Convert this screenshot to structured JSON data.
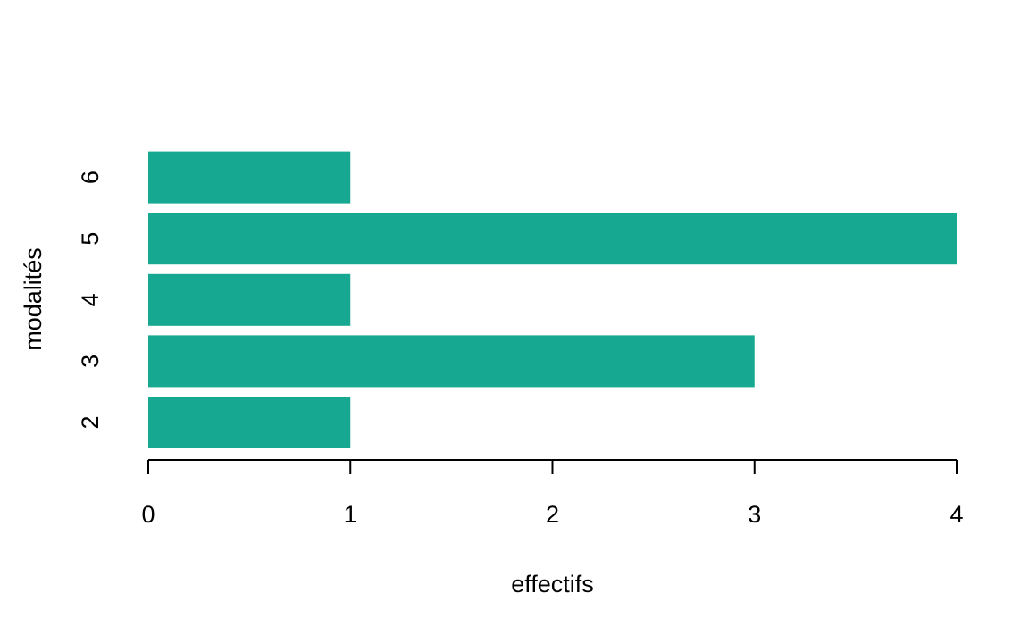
{
  "chart_data": {
    "type": "bar",
    "orientation": "horizontal",
    "categories": [
      "2",
      "3",
      "4",
      "5",
      "6"
    ],
    "values": [
      1,
      3,
      1,
      4,
      1
    ],
    "title": "",
    "xlabel": "effectifs",
    "ylabel": "modalités",
    "xlim": [
      0,
      4
    ],
    "x_ticks": [
      "0",
      "1",
      "2",
      "3",
      "4"
    ],
    "grid": false,
    "legend": "none",
    "bar_color": "#17A891",
    "axis_color": "#000000"
  }
}
